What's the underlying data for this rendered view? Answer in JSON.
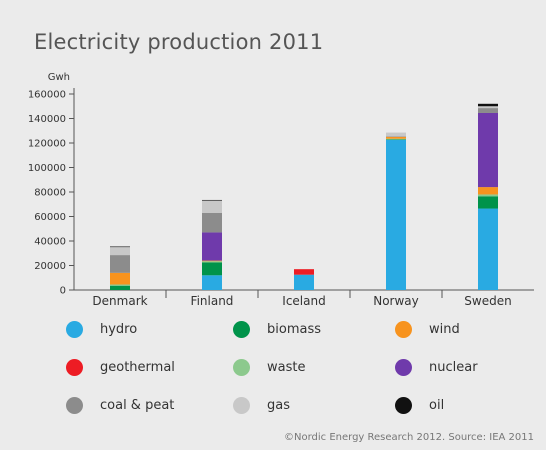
{
  "title": "Electricity production 2011",
  "source": "©Nordic Energy Research 2012. Source: IEA 2011",
  "chart_data": {
    "type": "bar",
    "stacked": true,
    "title": "Electricity production 2011",
    "ylabel": "Gwh",
    "xlabel": "",
    "ylim": [
      0,
      160000
    ],
    "yticks": [
      0,
      20000,
      40000,
      60000,
      80000,
      100000,
      120000,
      140000,
      160000
    ],
    "categories": [
      "Denmark",
      "Finland",
      "Iceland",
      "Norway",
      "Sweden"
    ],
    "legend_position": "bottom",
    "grid": false,
    "series": [
      {
        "name": "hydro",
        "color": "#29aae2",
        "values": [
          0,
          12000,
          12500,
          122500,
          66500
        ]
      },
      {
        "name": "biomass",
        "color": "#00934a",
        "values": [
          3500,
          10500,
          0,
          500,
          10000
        ]
      },
      {
        "name": "waste",
        "color": "#8cc98d",
        "values": [
          1000,
          1000,
          0,
          500,
          1500
        ]
      },
      {
        "name": "wind",
        "color": "#f7931e",
        "values": [
          9500,
          500,
          0,
          1500,
          6000
        ]
      },
      {
        "name": "geothermal",
        "color": "#ed1c24",
        "values": [
          0,
          0,
          4500,
          0,
          0
        ]
      },
      {
        "name": "nuclear",
        "color": "#6f3aab",
        "values": [
          0,
          23000,
          0,
          0,
          60500
        ]
      },
      {
        "name": "coal & peat",
        "color": "#8c8c8c",
        "values": [
          14500,
          16000,
          0,
          500,
          4000
        ]
      },
      {
        "name": "gas",
        "color": "#c8c8c8",
        "values": [
          6500,
          10000,
          0,
          3000,
          1500
        ]
      },
      {
        "name": "oil",
        "color": "#111111",
        "values": [
          500,
          500,
          0,
          0,
          2000
        ]
      }
    ],
    "legend_order": [
      "hydro",
      "biomass",
      "wind",
      "geothermal",
      "waste",
      "nuclear",
      "coal & peat",
      "gas",
      "oil"
    ]
  }
}
